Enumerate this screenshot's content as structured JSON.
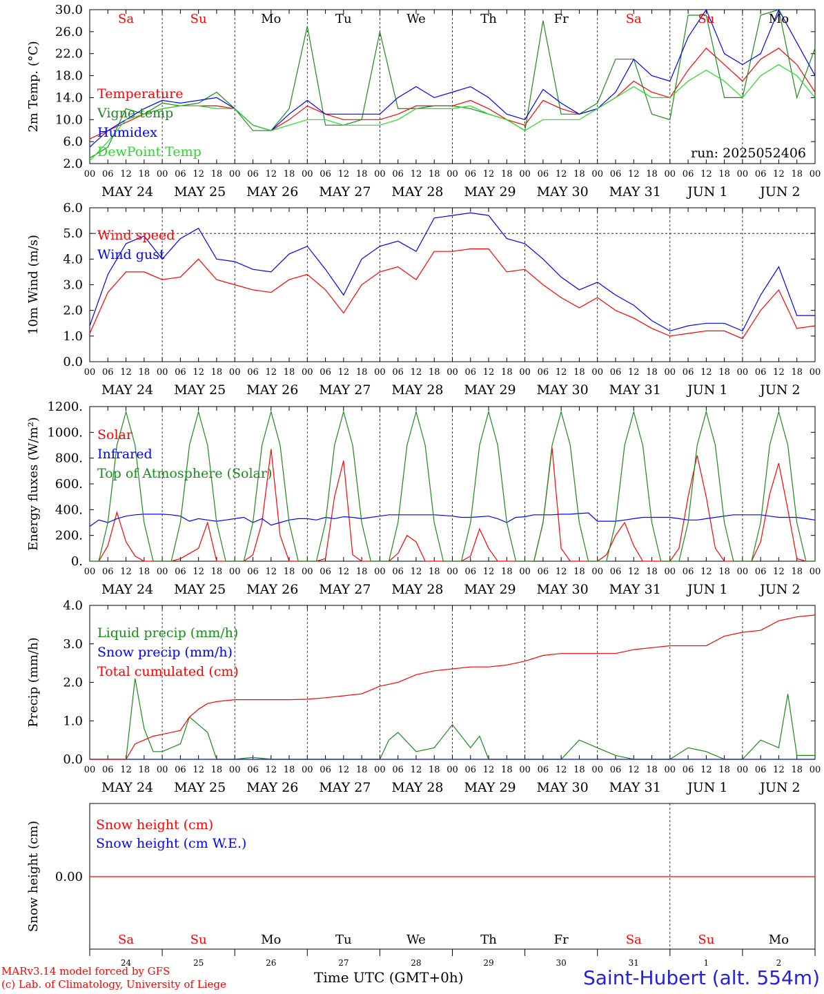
{
  "footer": {
    "model_line": "MARv3.14 model forced by GFS",
    "lab_line": "(c) Lab. of Climatology, University of Liege",
    "time_label": "Time UTC (GMT+0h)",
    "station": "Saint-Hubert (alt. 554m)"
  },
  "colors": {
    "red": "#ff0000",
    "green": "#1a8a1a",
    "blue": "#0000ff",
    "lightgreen": "#22dd22"
  },
  "days": [
    "Sa",
    "Su",
    "Mo",
    "Tu",
    "We",
    "Th",
    "Fr",
    "Sa",
    "Su",
    "Mo"
  ],
  "day_colors": [
    "red",
    "red",
    "black",
    "black",
    "black",
    "black",
    "black",
    "red",
    "red",
    "black"
  ],
  "date_labels": [
    "MAY 24",
    "MAY 25",
    "MAY 26",
    "MAY 27",
    "MAY 28",
    "MAY 29",
    "MAY 30",
    "MAY 31",
    "JUN  1",
    "JUN  2"
  ],
  "hour_ticks": [
    "00",
    "06",
    "12",
    "18"
  ],
  "bottom_day_numbers": [
    "24",
    "25",
    "26",
    "27",
    "28",
    "29",
    "30",
    "31",
    "1",
    "2"
  ],
  "chart_data": [
    {
      "type": "line",
      "ylabel": "2m Temp. (°C)",
      "ylim": [
        2,
        30
      ],
      "yticks": [
        "2.0",
        "6.0",
        "10.0",
        "14.0",
        "18.0",
        "22.0",
        "26.0",
        "30.0"
      ],
      "run_label": "run: 2025052406",
      "x_hours": [
        0,
        6,
        12,
        18,
        24,
        30,
        36,
        42,
        48,
        54,
        60,
        66,
        72,
        78,
        84,
        90,
        96,
        102,
        108,
        114,
        120,
        126,
        132,
        138,
        144,
        150,
        156,
        162,
        168,
        174,
        180,
        186,
        192,
        198,
        204,
        210,
        216,
        222,
        228,
        234,
        240
      ],
      "series": [
        {
          "name": "Temperature",
          "color": "red",
          "values": [
            6.5,
            8,
            9.5,
            11,
            12,
            12.5,
            12.5,
            12.5,
            12,
            9,
            8,
            10,
            12.5,
            11,
            10,
            10,
            10,
            11,
            12.5,
            12.5,
            12.5,
            13.5,
            12,
            10,
            9,
            13.5,
            12,
            11,
            12,
            14,
            17,
            15,
            14,
            19,
            23,
            20,
            17,
            21,
            23,
            20,
            15
          ]
        },
        {
          "name": "Vigne temp",
          "color": "green",
          "values": [
            3,
            5,
            12,
            11,
            13,
            12.5,
            13,
            15,
            12,
            8,
            8,
            12,
            27,
            9,
            9,
            10,
            26,
            12,
            12,
            12.5,
            12.5,
            12,
            11,
            10,
            8,
            28,
            11,
            11,
            13,
            21,
            21,
            11,
            10,
            29,
            29,
            14,
            14,
            29,
            30,
            14,
            23
          ]
        },
        {
          "name": "Humidex",
          "color": "blue",
          "values": [
            5,
            8,
            10,
            12,
            13.5,
            13,
            13.5,
            14,
            12,
            9,
            8,
            11,
            13.5,
            11,
            11,
            11,
            11,
            14,
            16,
            14,
            15,
            16,
            14,
            11,
            10,
            15.5,
            13,
            11,
            12,
            15,
            21,
            18,
            17,
            25,
            30,
            22,
            20,
            22,
            30,
            24,
            18
          ]
        },
        {
          "name": "DewPoint Temp",
          "color": "lightgreen",
          "values": [
            2.5,
            6,
            10,
            11,
            12,
            12.5,
            12.5,
            12,
            12,
            9,
            8,
            9,
            10,
            10,
            9,
            9,
            9,
            10,
            12,
            12,
            12,
            12.5,
            11,
            10,
            8,
            10,
            10,
            10,
            12,
            14,
            16,
            14,
            14,
            17,
            19,
            17,
            14,
            18,
            20,
            18,
            14
          ]
        }
      ]
    },
    {
      "type": "line",
      "ylabel": "10m Wind (m/s)",
      "ylim": [
        0,
        6
      ],
      "yticks": [
        "0.0",
        "1.0",
        "2.0",
        "3.0",
        "4.0",
        "5.0",
        "6.0"
      ],
      "ref_line": 5,
      "x_hours": [
        0,
        6,
        12,
        18,
        24,
        30,
        36,
        42,
        48,
        54,
        60,
        66,
        72,
        78,
        84,
        90,
        96,
        102,
        108,
        114,
        120,
        126,
        132,
        138,
        144,
        150,
        156,
        162,
        168,
        174,
        180,
        186,
        192,
        198,
        204,
        210,
        216,
        222,
        228,
        234,
        240
      ],
      "series": [
        {
          "name": "Wind speed",
          "color": "red",
          "values": [
            1.1,
            2.7,
            3.5,
            3.5,
            3.2,
            3.3,
            4.0,
            3.2,
            3.0,
            2.8,
            2.7,
            3.2,
            3.4,
            2.8,
            1.9,
            3.0,
            3.5,
            3.7,
            3.2,
            4.3,
            4.3,
            4.4,
            4.4,
            3.5,
            3.6,
            3.0,
            2.5,
            2.1,
            2.5,
            2.0,
            1.7,
            1.3,
            1.0,
            1.1,
            1.2,
            1.2,
            0.9,
            2.0,
            2.8,
            1.3,
            1.4
          ]
        },
        {
          "name": "Wind gust",
          "color": "blue",
          "values": [
            1.4,
            3.4,
            4.6,
            4.9,
            4.0,
            4.8,
            5.2,
            4.0,
            3.9,
            3.6,
            3.5,
            4.2,
            4.5,
            3.6,
            2.6,
            4.0,
            4.5,
            4.7,
            4.3,
            5.6,
            5.7,
            5.8,
            5.7,
            4.8,
            4.6,
            4.0,
            3.3,
            2.8,
            3.1,
            2.6,
            2.2,
            1.6,
            1.2,
            1.4,
            1.5,
            1.5,
            1.2,
            2.6,
            3.7,
            1.8,
            1.8
          ]
        }
      ]
    },
    {
      "type": "line",
      "ylabel": "Energy fluxes (W/m²)",
      "ylim": [
        0,
        1200
      ],
      "yticks": [
        "0.",
        "200.",
        "400.",
        "600.",
        "800.",
        "1000.",
        "1200."
      ],
      "x_hours": [
        0,
        3,
        6,
        9,
        12,
        15,
        18,
        21,
        24,
        27,
        30,
        33,
        36,
        39,
        42,
        45,
        48,
        51,
        54,
        57,
        60,
        63,
        66,
        69,
        72,
        75,
        78,
        81,
        84,
        87,
        90,
        93,
        96,
        99,
        102,
        105,
        108,
        111,
        114,
        117,
        120,
        123,
        126,
        129,
        132,
        135,
        138,
        141,
        144,
        147,
        150,
        153,
        156,
        159,
        162,
        165,
        168,
        171,
        174,
        177,
        180,
        183,
        186,
        189,
        192,
        195,
        198,
        201,
        204,
        207,
        210,
        213,
        216,
        219,
        222,
        225,
        228,
        231,
        234,
        237,
        240
      ],
      "series": [
        {
          "name": "Solar",
          "color": "red",
          "values": [
            0,
            0,
            120,
            380,
            150,
            40,
            0,
            0,
            0,
            0,
            20,
            60,
            100,
            300,
            0,
            0,
            0,
            0,
            50,
            300,
            870,
            200,
            0,
            0,
            0,
            0,
            20,
            500,
            780,
            50,
            0,
            0,
            0,
            0,
            60,
            200,
            150,
            0,
            0,
            0,
            0,
            0,
            40,
            250,
            100,
            0,
            0,
            0,
            0,
            0,
            300,
            880,
            100,
            0,
            0,
            0,
            0,
            50,
            200,
            300,
            120,
            0,
            0,
            0,
            0,
            100,
            500,
            820,
            500,
            100,
            0,
            0,
            0,
            0,
            150,
            520,
            760,
            400,
            20,
            0,
            0
          ]
        },
        {
          "name": "Infrared",
          "color": "blue",
          "values": [
            270,
            320,
            300,
            330,
            350,
            360,
            365,
            365,
            365,
            360,
            350,
            310,
            330,
            320,
            310,
            320,
            330,
            340,
            300,
            330,
            280,
            300,
            320,
            330,
            330,
            320,
            340,
            330,
            345,
            340,
            330,
            340,
            350,
            360,
            360,
            360,
            360,
            360,
            360,
            355,
            350,
            340,
            340,
            345,
            350,
            330,
            300,
            340,
            345,
            360,
            360,
            360,
            365,
            365,
            370,
            375,
            310,
            310,
            310,
            320,
            330,
            340,
            340,
            340,
            340,
            330,
            320,
            320,
            330,
            340,
            350,
            360,
            360,
            360,
            360,
            350,
            340,
            340,
            340,
            330,
            320
          ]
        },
        {
          "name": "Top of Atmosphere (Solar)",
          "color": "green",
          "values": [
            0,
            0,
            300,
            900,
            1160,
            900,
            300,
            0,
            0,
            0,
            300,
            900,
            1160,
            900,
            300,
            0,
            0,
            0,
            300,
            900,
            1160,
            900,
            300,
            0,
            0,
            0,
            300,
            900,
            1160,
            900,
            300,
            0,
            0,
            0,
            300,
            900,
            1160,
            900,
            300,
            0,
            0,
            0,
            300,
            900,
            1160,
            900,
            300,
            0,
            0,
            0,
            300,
            900,
            1160,
            900,
            300,
            0,
            0,
            0,
            300,
            900,
            1160,
            900,
            300,
            0,
            0,
            0,
            300,
            900,
            1160,
            900,
            300,
            0,
            0,
            0,
            300,
            900,
            1160,
            900,
            300,
            0,
            0
          ]
        }
      ]
    },
    {
      "type": "line",
      "ylabel": "Precip (mm/h)",
      "ylim": [
        0,
        4
      ],
      "yticks": [
        "0.0",
        "1.0",
        "2.0",
        "3.0",
        "4.0"
      ],
      "x_hours": [
        0,
        6,
        12,
        15,
        18,
        21,
        24,
        30,
        33,
        36,
        39,
        42,
        48,
        54,
        60,
        66,
        72,
        78,
        84,
        90,
        96,
        99,
        102,
        108,
        114,
        120,
        126,
        129,
        132,
        138,
        144,
        150,
        156,
        162,
        168,
        174,
        180,
        186,
        192,
        198,
        204,
        210,
        216,
        222,
        228,
        231,
        234,
        240
      ],
      "series": [
        {
          "name": "Liquid precip (mm/h)",
          "color": "green",
          "values": [
            0,
            0,
            0,
            2.1,
            0.8,
            0.2,
            0.2,
            0.4,
            1.1,
            0.9,
            0.7,
            0,
            0,
            0.05,
            0,
            0,
            0,
            0,
            0,
            0,
            0,
            0.5,
            0.7,
            0.2,
            0.3,
            0.9,
            0.3,
            0.6,
            0,
            0,
            0,
            0,
            0,
            0.5,
            0.3,
            0.1,
            0,
            0,
            0,
            0.3,
            0.2,
            0,
            0,
            0.5,
            0.3,
            1.7,
            0.1,
            0.1
          ]
        },
        {
          "name": "Snow precip (mm/h)",
          "color": "blue",
          "values": [
            0,
            0,
            0,
            0,
            0,
            0,
            0,
            0,
            0,
            0,
            0,
            0,
            0,
            0,
            0,
            0,
            0,
            0,
            0,
            0,
            0,
            0,
            0,
            0,
            0,
            0,
            0,
            0,
            0,
            0,
            0,
            0,
            0,
            0,
            0,
            0,
            0,
            0,
            0,
            0,
            0,
            0,
            0,
            0,
            0,
            0,
            0,
            0
          ]
        },
        {
          "name": "Total cumulated (cm)",
          "color": "red",
          "values": [
            0,
            0,
            0,
            0.4,
            0.5,
            0.6,
            0.65,
            0.75,
            1.1,
            1.3,
            1.45,
            1.5,
            1.55,
            1.55,
            1.55,
            1.55,
            1.56,
            1.6,
            1.65,
            1.7,
            1.9,
            1.95,
            2.0,
            2.2,
            2.3,
            2.35,
            2.4,
            2.4,
            2.4,
            2.45,
            2.55,
            2.7,
            2.75,
            2.75,
            2.75,
            2.75,
            2.85,
            2.9,
            2.95,
            2.95,
            2.95,
            3.2,
            3.3,
            3.35,
            3.6,
            3.65,
            3.7,
            3.75
          ]
        }
      ]
    },
    {
      "type": "line",
      "ylabel": "Snow height (cm)",
      "yticks": [
        "0.00"
      ],
      "series": [
        {
          "name": "Snow height (cm)",
          "color": "red",
          "values": [
            0,
            0
          ]
        },
        {
          "name": "Snow height (cm W.E.)",
          "color": "blue",
          "values": [
            0,
            0
          ]
        }
      ]
    }
  ]
}
